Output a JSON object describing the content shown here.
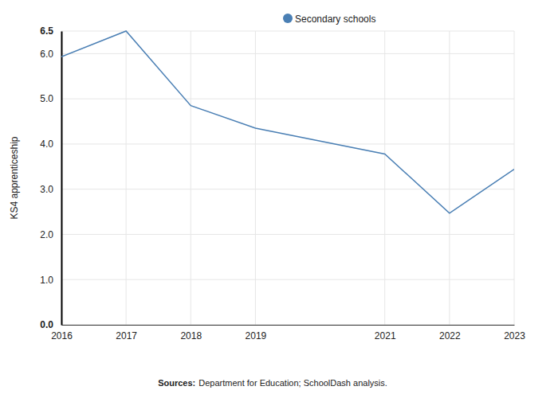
{
  "chart_data": {
    "type": "line",
    "x": [
      2016,
      2017,
      2018,
      2019,
      2021,
      2022,
      2023
    ],
    "series": [
      {
        "name": "Secondary schools",
        "color": "#4a7fb4",
        "values": [
          5.93,
          6.5,
          4.85,
          4.35,
          3.78,
          2.47,
          3.44
        ]
      }
    ],
    "y_label": "KS4 apprenticeship",
    "xlim": [
      2016,
      2023
    ],
    "xticks": [
      2016,
      2017,
      2018,
      2019,
      2021,
      2022,
      2023
    ],
    "ylim": [
      0,
      6.5
    ],
    "yticks": [
      {
        "value": 0,
        "label": "0.0"
      },
      {
        "value": 1,
        "label": "1.0"
      },
      {
        "value": 2,
        "label": "2.0"
      },
      {
        "value": 3,
        "label": "3.0"
      },
      {
        "value": 4,
        "label": "4.0"
      },
      {
        "value": 5,
        "label": "5.0"
      },
      {
        "value": 6,
        "label": "6.0"
      },
      6.5
    ],
    "grid": true,
    "legend": "top",
    "source_label": "Sources:",
    "source": "Department for Education; SchoolDash analysis."
  }
}
